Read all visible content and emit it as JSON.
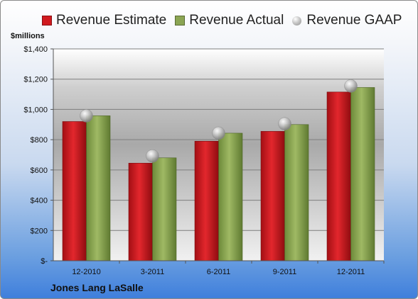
{
  "chart_data": {
    "type": "bar",
    "categories": [
      "12-2010",
      "3-2011",
      "6-2011",
      "9-2011",
      "12-2011"
    ],
    "series": [
      {
        "name": "Revenue Estimate",
        "values": [
          920,
          645,
          790,
          855,
          1115
        ],
        "color": "#d11a1f"
      },
      {
        "name": "Revenue Actual",
        "values": [
          958,
          680,
          843,
          900,
          1145
        ],
        "color": "#8ba553"
      },
      {
        "name": "Revenue GAAP",
        "values": [
          958,
          692,
          843,
          905,
          1155
        ],
        "color": "#a6a6a6",
        "marker": "sphere"
      }
    ],
    "ylabel": "$millions",
    "ylim": [
      0,
      1400
    ],
    "yticks": [
      0,
      200,
      400,
      600,
      800,
      1000,
      1200,
      1400
    ],
    "ytick_labels": [
      "$-",
      "$200",
      "$400",
      "$600",
      "$800",
      "$1,000",
      "$1,200",
      "$1,400"
    ],
    "grid": true,
    "legend": "top"
  },
  "footer": {
    "company": "Jones Lang LaSalle"
  }
}
